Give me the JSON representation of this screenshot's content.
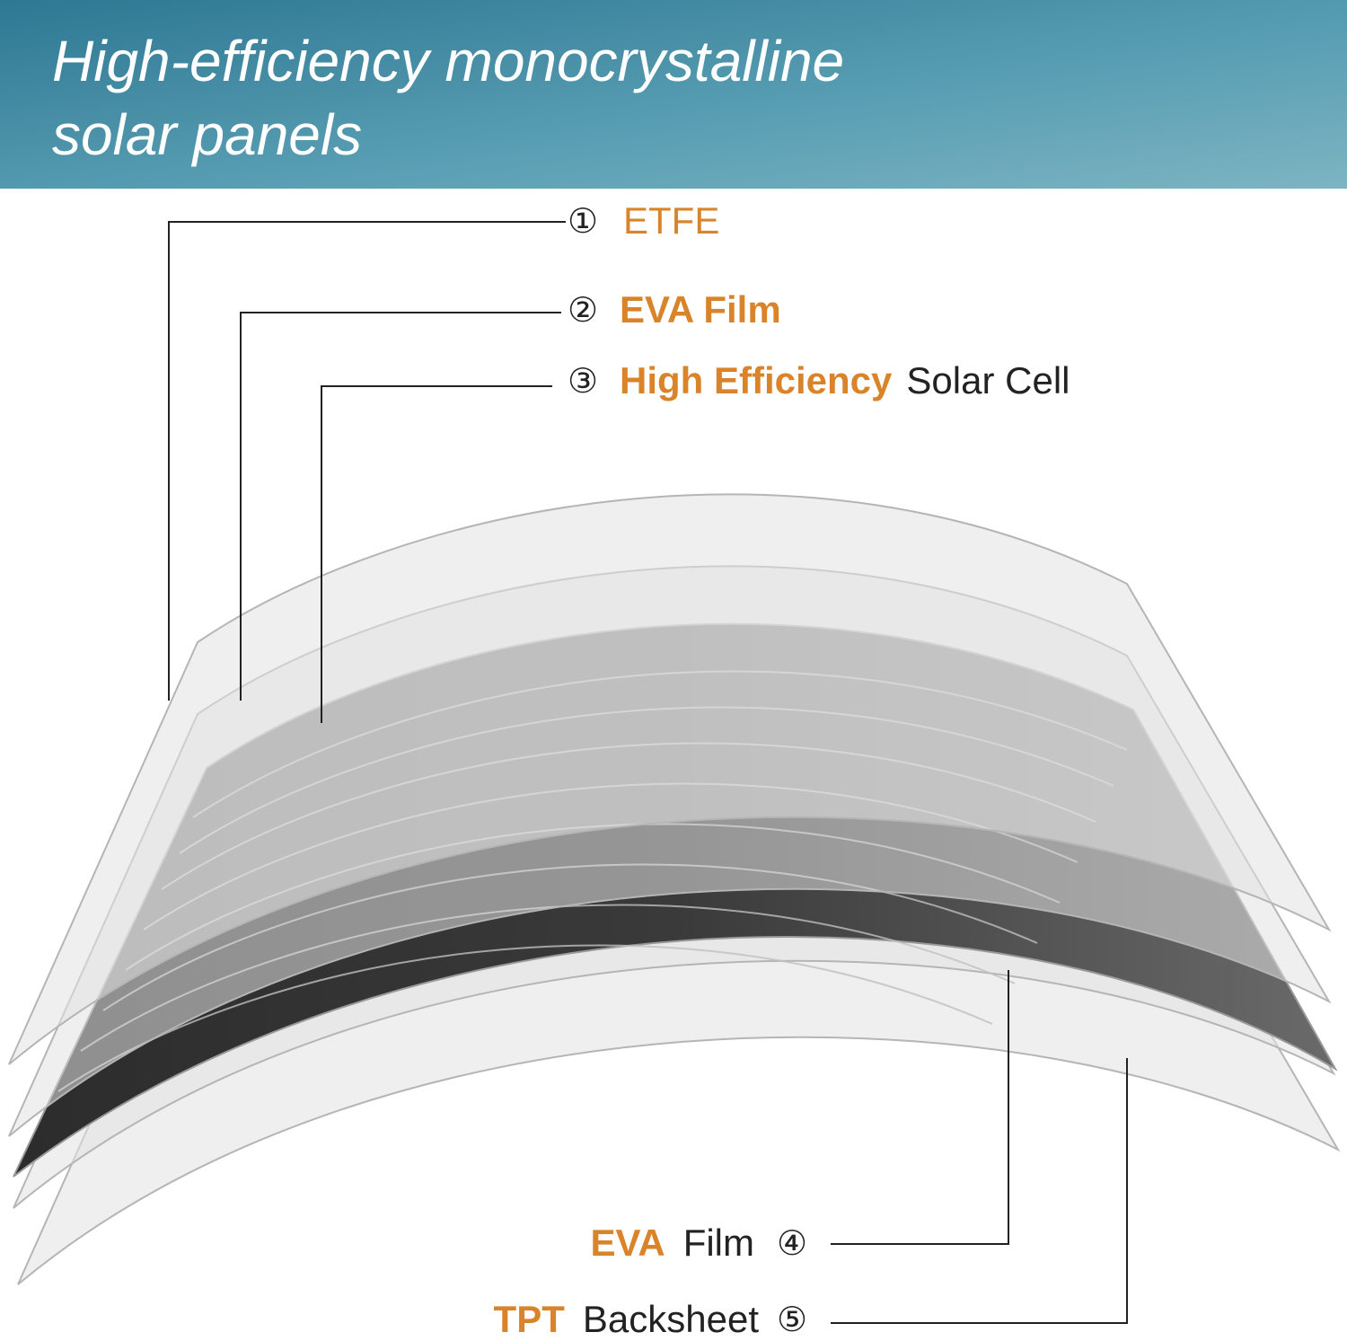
{
  "header": {
    "title_lines": [
      "High-efficiency monocrystalline",
      "solar panels"
    ]
  },
  "layers": [
    {
      "number": "①",
      "highlight": "ETFE"
    },
    {
      "number": "②",
      "highlight": "EVA Film"
    },
    {
      "number": "③",
      "highlight": "High Efficiency",
      "rest": "Solar Cell"
    },
    {
      "number": "④",
      "highlight": "EVA",
      "rest": "Film"
    },
    {
      "number": "⑤",
      "highlight": "TPT",
      "rest": "Backsheet"
    }
  ]
}
